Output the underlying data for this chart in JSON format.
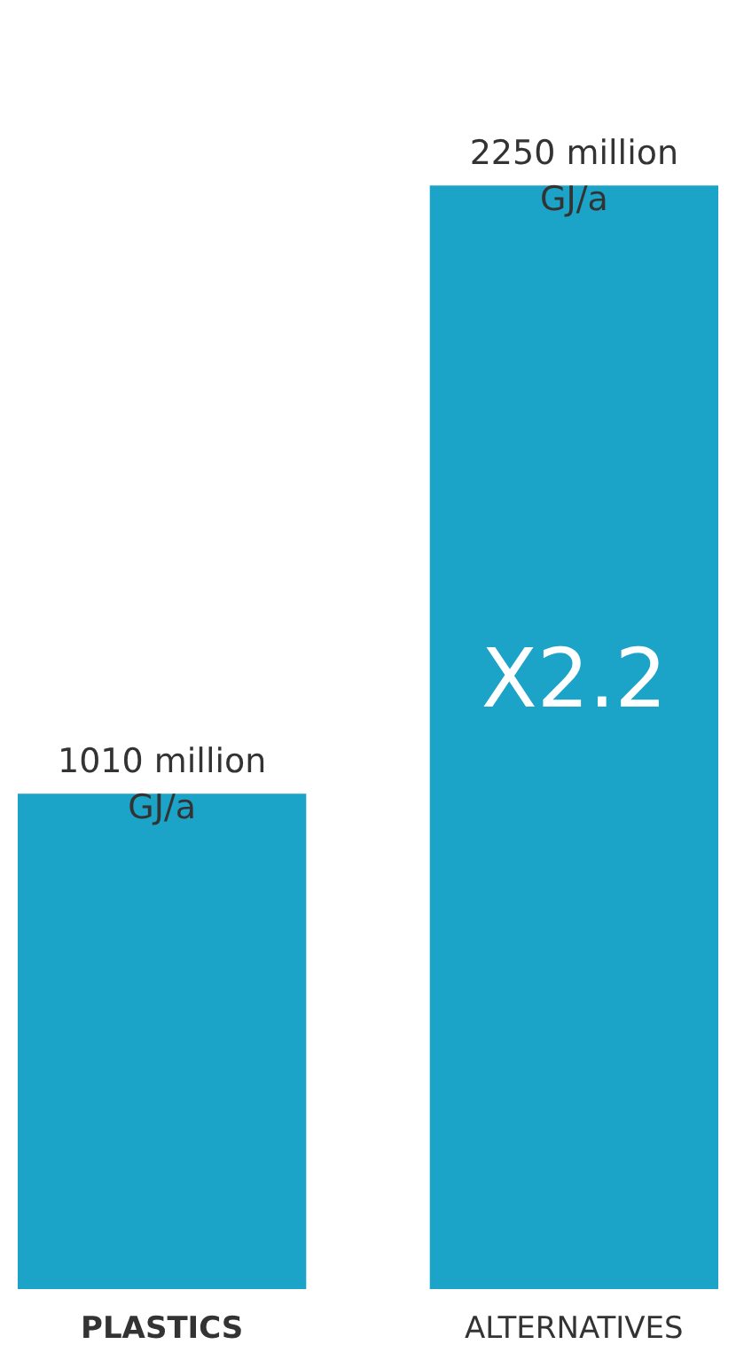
{
  "chart_data": {
    "type": "bar",
    "categories": [
      "PLASTICS",
      "ALTERNATIVES"
    ],
    "values": [
      1010,
      2250
    ],
    "color": "#1ba3c8",
    "value_labels": [
      "1010 million GJ/a",
      "2250 million GJ/a"
    ],
    "annotations": [
      "X2.2"
    ],
    "grid": false
  }
}
